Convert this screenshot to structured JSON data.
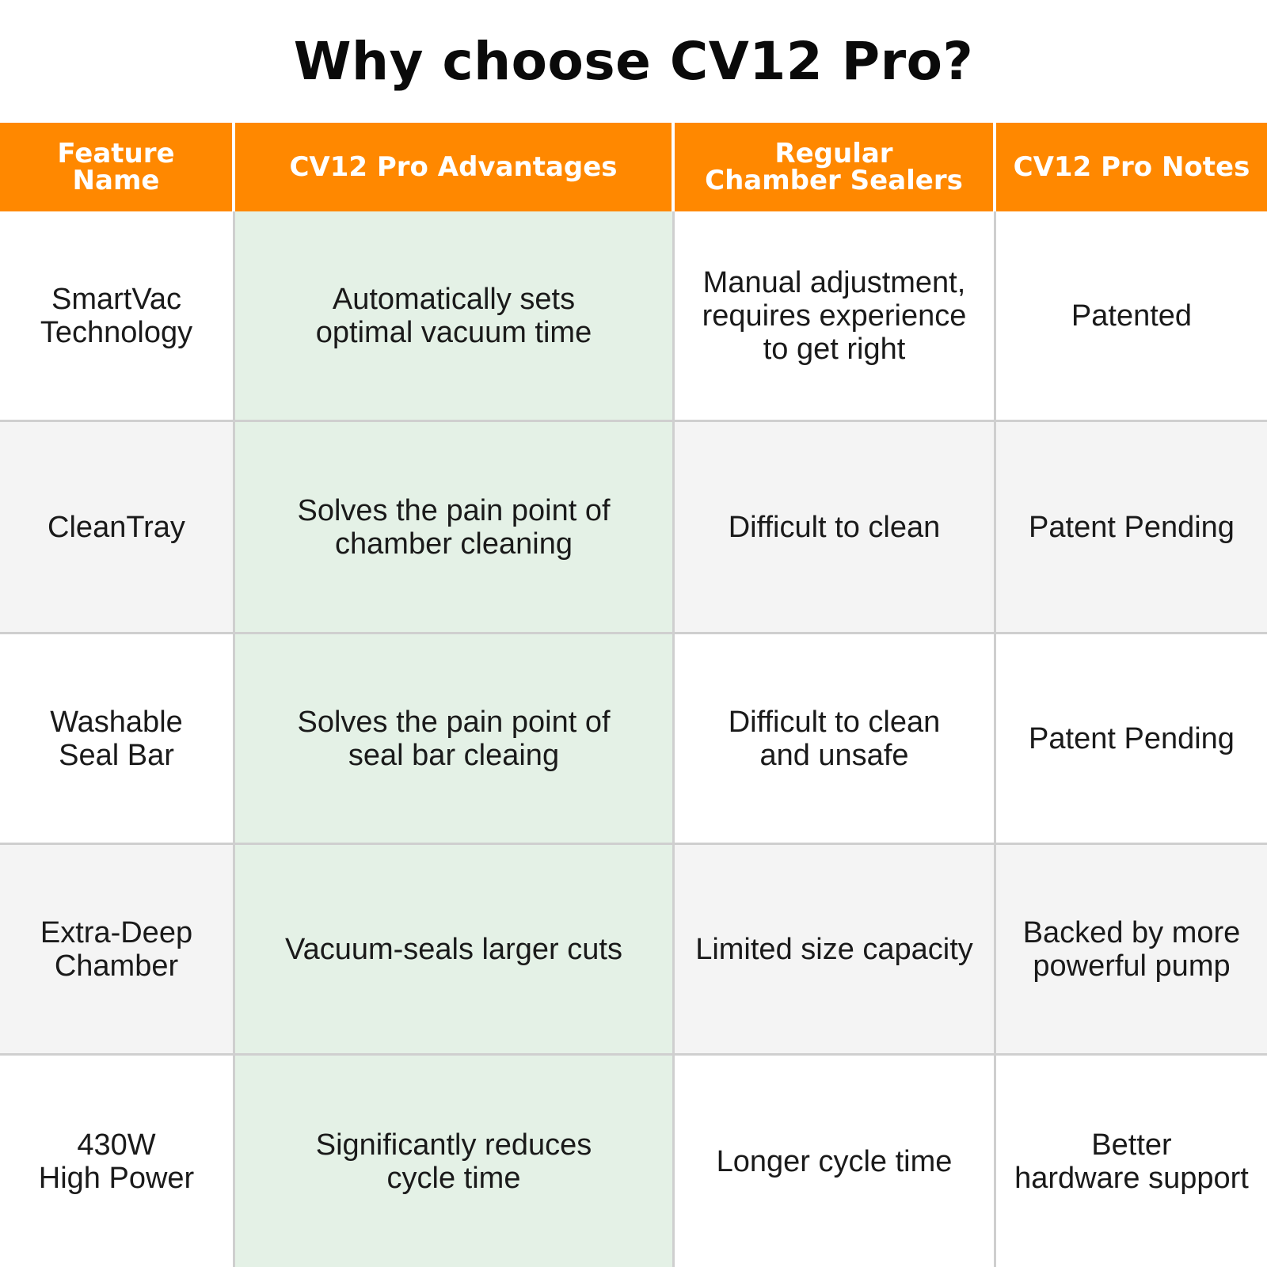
{
  "title": "Why choose CV12 Pro?",
  "colors": {
    "header_bg": "#ff8800",
    "header_text": "#ffffff",
    "advantage_column_bg": "#e4f1e6",
    "alt_row_bg": "#f4f4f4"
  },
  "headers": [
    "Feature Name",
    "CV12 Pro Advantages",
    "Regular\nChamber Sealers",
    "CV12 Pro Notes"
  ],
  "rows": [
    [
      "SmartVac\nTechnology",
      "Automatically sets\noptimal vacuum time",
      "Manual adjustment,\nrequires experience\nto get right",
      "Patented"
    ],
    [
      "CleanTray",
      "Solves the pain point of\nchamber cleaning",
      "Difficult to clean",
      "Patent Pending"
    ],
    [
      "Washable\nSeal Bar",
      "Solves the pain point of\nseal bar cleaing",
      "Difficult to clean\nand unsafe",
      "Patent Pending"
    ],
    [
      "Extra-Deep\nChamber",
      "Vacuum-seals larger cuts",
      "Limited size capacity",
      "Backed by more\npowerful pump"
    ],
    [
      "430W\nHigh Power",
      "Significantly reduces\ncycle time",
      "Longer cycle time",
      "Better\nhardware support"
    ]
  ]
}
